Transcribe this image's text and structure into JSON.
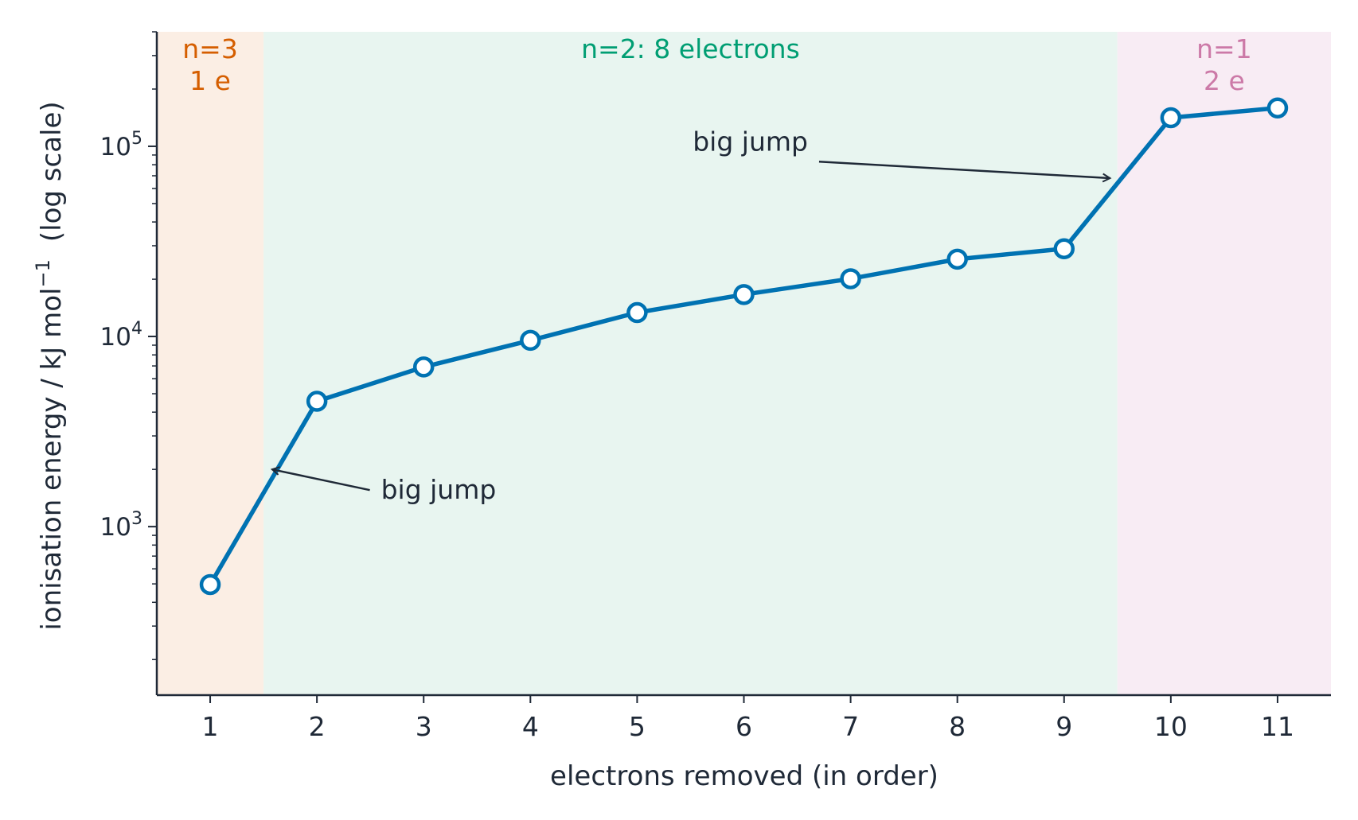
{
  "chart_data": {
    "type": "line",
    "title": "",
    "xlabel": "electrons removed (in order)",
    "ylabel": "ionisation energy / kJ mol",
    "ylabel_superscript": "−1",
    "ylabel_suffix": "(log scale)",
    "y_scale": "log",
    "xlim": [
      0.5,
      11.5
    ],
    "ylim": [
      130,
      400000
    ],
    "grid": false,
    "x_ticks": [
      1,
      2,
      3,
      4,
      5,
      6,
      7,
      8,
      9,
      10,
      11
    ],
    "x_tick_labels": [
      "1",
      "2",
      "3",
      "4",
      "5",
      "6",
      "7",
      "8",
      "9",
      "10",
      "11"
    ],
    "y_major_ticks": [
      1000,
      10000,
      100000
    ],
    "y_tick_labels": [
      {
        "base": "10",
        "exp": "3"
      },
      {
        "base": "10",
        "exp": "4"
      },
      {
        "base": "10",
        "exp": "5"
      }
    ],
    "series": [
      {
        "color": "#0072b2",
        "x": [
          1,
          2,
          3,
          4,
          5,
          6,
          7,
          8,
          9,
          10,
          11
        ],
        "values": [
          496,
          4562,
          6910,
          9543,
          13354,
          16613,
          20117,
          25496,
          28932,
          141362,
          159076
        ]
      }
    ],
    "shells": [
      {
        "x_from": 0.5,
        "x_to": 1.5,
        "label_lines": [
          "n=3",
          "1 e"
        ],
        "color": "#d55e00",
        "fill": "#fbeee4"
      },
      {
        "x_from": 1.5,
        "x_to": 9.5,
        "label_lines": [
          "n=2: 8 electrons"
        ],
        "color": "#009e73",
        "fill": "#e8f5f0"
      },
      {
        "x_from": 9.5,
        "x_to": 11.5,
        "label_lines": [
          "n=1",
          "2 e"
        ],
        "color": "#cc79a7",
        "fill": "#f8ecf4"
      }
    ],
    "annotations": [
      {
        "text": "big jump",
        "text_x": 2.6,
        "text_y": 1400,
        "arrow_x": 1.58,
        "arrow_y": 2000
      },
      {
        "text": "big jump",
        "text_x": 6.6,
        "text_y": 95000,
        "arrow_x": 9.43,
        "arrow_y": 68000
      }
    ],
    "colors": {
      "axis": "#1f2937",
      "text": "#1f2937",
      "line": "#0072b2",
      "marker_fill": "#ffffff"
    }
  }
}
